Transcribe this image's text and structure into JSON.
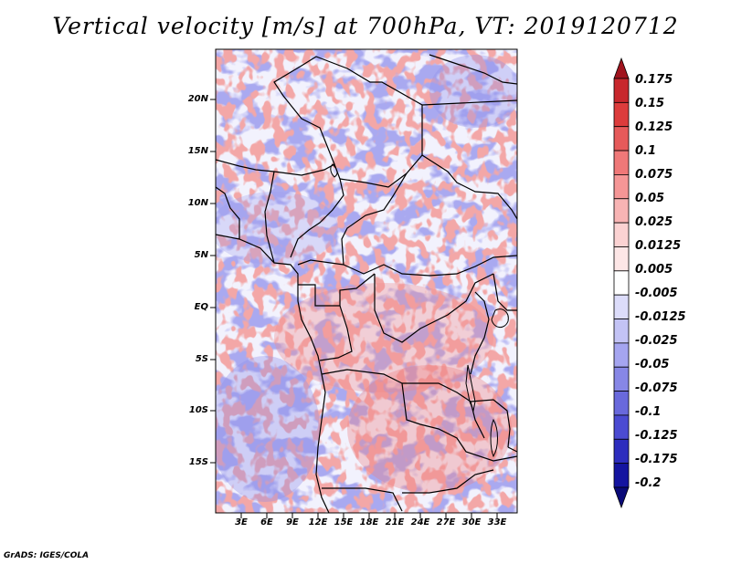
{
  "title": "Vertical velocity [m/s] at 700hPa, VT: 2019120712",
  "credit": "GrADS: IGES/COLA",
  "lat_labels": [
    "20N",
    "15N",
    "10N",
    "5N",
    "EQ",
    "5S",
    "10S",
    "15S"
  ],
  "lon_labels": [
    "3E",
    "6E",
    "9E",
    "12E",
    "15E",
    "18E",
    "21E",
    "24E",
    "27E",
    "30E",
    "33E"
  ],
  "colorbar": {
    "labels": [
      "0.175",
      "0.15",
      "0.125",
      "0.1",
      "0.075",
      "0.05",
      "0.025",
      "0.0125",
      "0.005",
      "-0.005",
      "-0.0125",
      "-0.025",
      "-0.05",
      "-0.075",
      "-0.1",
      "-0.125",
      "-0.175",
      "-0.2"
    ],
    "colors": [
      "#a0141e",
      "#c8282d",
      "#dc3c3c",
      "#e65a5a",
      "#ef7878",
      "#f59696",
      "#f8b4b4",
      "#fbd2d2",
      "#fde6e6",
      "#ffffff",
      "#dcdcfa",
      "#c3c3f5",
      "#a5a5f0",
      "#8787e6",
      "#6969dc",
      "#4b4bd2",
      "#2d2dbe",
      "#1414a0",
      "#0a0a78"
    ]
  }
}
